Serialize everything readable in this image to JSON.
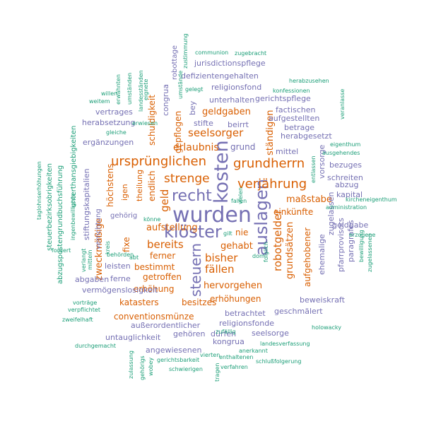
{
  "colors": {
    "purple": "#7570b3",
    "orange": "#d95f02",
    "teal": "#1b9e77"
  },
  "words": [
    {
      "text": "wurden",
      "color": "purple"
    },
    {
      "text": "kosten",
      "color": "purple"
    },
    {
      "text": "klöster",
      "color": "purple"
    },
    {
      "text": "auslagen",
      "color": "purple"
    },
    {
      "text": "recht",
      "color": "purple"
    },
    {
      "text": "steuern",
      "color": "purple"
    },
    {
      "text": "ursprünglichen",
      "color": "orange"
    },
    {
      "text": "verjährung",
      "color": "orange"
    },
    {
      "text": "grundherrn",
      "color": "orange"
    },
    {
      "text": "strenge",
      "color": "orange"
    },
    {
      "text": "geld",
      "color": "orange"
    },
    {
      "text": "bereits",
      "color": "orange"
    },
    {
      "text": "robotgelder",
      "color": "orange"
    },
    {
      "text": "seelsorger",
      "color": "orange"
    },
    {
      "text": "fällen",
      "color": "orange"
    },
    {
      "text": "bisher",
      "color": "orange"
    },
    {
      "text": "gehabt",
      "color": "orange"
    },
    {
      "text": "erlaubnis",
      "color": "orange"
    },
    {
      "text": "grundsätzen",
      "color": "orange"
    },
    {
      "text": "ständigen",
      "color": "orange"
    },
    {
      "text": "geldgaben",
      "color": "orange"
    },
    {
      "text": "schuldigkeit",
      "color": "orange"
    },
    {
      "text": "aufstellung",
      "color": "orange"
    },
    {
      "text": "zweckmäßige",
      "color": "orange"
    },
    {
      "text": "höchstens",
      "color": "orange"
    },
    {
      "text": "maßstabe",
      "color": "orange"
    },
    {
      "text": "einkünfte",
      "color": "orange"
    },
    {
      "text": "hervorgehen",
      "color": "orange"
    },
    {
      "text": "erhöhungen",
      "color": "orange"
    },
    {
      "text": "aufgehobener",
      "color": "orange"
    },
    {
      "text": "erhöhung",
      "color": "orange"
    },
    {
      "text": "katasters",
      "color": "orange"
    },
    {
      "text": "besitzes",
      "color": "orange"
    },
    {
      "text": "conventionsmünze",
      "color": "orange"
    },
    {
      "text": "getroffen",
      "color": "orange"
    },
    {
      "text": "bestimmt",
      "color": "orange"
    },
    {
      "text": "ferner",
      "color": "orange"
    },
    {
      "text": "gepflogen",
      "color": "orange"
    },
    {
      "text": "endlich",
      "color": "orange"
    },
    {
      "text": "fixe",
      "color": "orange"
    },
    {
      "text": "nie",
      "color": "orange"
    },
    {
      "text": "igen",
      "color": "orange"
    },
    {
      "text": "theilung",
      "color": "orange"
    },
    {
      "text": "grund",
      "color": "purple"
    },
    {
      "text": "mittel",
      "color": "purple"
    },
    {
      "text": "bezuges",
      "color": "purple"
    },
    {
      "text": "schreiten",
      "color": "purple"
    },
    {
      "text": "kapital",
      "color": "purple"
    },
    {
      "text": "pfarrprovisors",
      "color": "purple"
    },
    {
      "text": "paragrafes",
      "color": "purple"
    },
    {
      "text": "beweiskraft",
      "color": "purple"
    },
    {
      "text": "geschmälert",
      "color": "purple"
    },
    {
      "text": "betrachtet",
      "color": "purple"
    },
    {
      "text": "religionsfonde",
      "color": "purple"
    },
    {
      "text": "kongrua",
      "color": "purple"
    },
    {
      "text": "seelsorge",
      "color": "purple"
    },
    {
      "text": "gehören",
      "color": "purple"
    },
    {
      "text": "angewiesenen",
      "color": "purple"
    },
    {
      "text": "untauglichkeit",
      "color": "purple"
    },
    {
      "text": "außerordentlicher",
      "color": "purple"
    },
    {
      "text": "dürfen",
      "color": "purple"
    },
    {
      "text": "vermögenslosigkeit",
      "color": "purple"
    },
    {
      "text": "abgaben",
      "color": "purple"
    },
    {
      "text": "ferne",
      "color": "purple"
    },
    {
      "text": "leisten",
      "color": "purple"
    },
    {
      "text": "gehörig",
      "color": "purple"
    },
    {
      "text": "ergänzungen",
      "color": "purple"
    },
    {
      "text": "herabsetzung",
      "color": "purple"
    },
    {
      "text": "vertrages",
      "color": "purple"
    },
    {
      "text": "stifte",
      "color": "purple"
    },
    {
      "text": "beirrt",
      "color": "purple"
    },
    {
      "text": "unterhalten",
      "color": "purple"
    },
    {
      "text": "religionsfond",
      "color": "purple"
    },
    {
      "text": "defizientengehalten",
      "color": "purple"
    },
    {
      "text": "jurisdictionspflege",
      "color": "purple"
    },
    {
      "text": "gerichtspflege",
      "color": "purple"
    },
    {
      "text": "factischen",
      "color": "purple"
    },
    {
      "text": "aufgestellten",
      "color": "purple"
    },
    {
      "text": "betrage",
      "color": "purple"
    },
    {
      "text": "herabgesetzt",
      "color": "purple"
    },
    {
      "text": "bey",
      "color": "purple"
    },
    {
      "text": "congrua",
      "color": "purple"
    },
    {
      "text": "robottage",
      "color": "purple"
    },
    {
      "text": "vorsorge",
      "color": "purple"
    },
    {
      "text": "zugelassen",
      "color": "purple"
    },
    {
      "text": "ehemalige",
      "color": "purple"
    },
    {
      "text": "abzug",
      "color": "purple"
    },
    {
      "text": "geldgabe",
      "color": "purple"
    },
    {
      "text": "stiftungskapitalien",
      "color": "purple"
    },
    {
      "text": "verrichtung",
      "color": "purple"
    },
    {
      "text": "zustimmung",
      "color": "teal"
    },
    {
      "text": "communion",
      "color": "teal"
    },
    {
      "text": "zugebracht",
      "color": "teal"
    },
    {
      "text": "herabzusehen",
      "color": "teal"
    },
    {
      "text": "konfessionen",
      "color": "teal"
    },
    {
      "text": "gelegt",
      "color": "teal"
    },
    {
      "text": "umstände",
      "color": "teal"
    },
    {
      "text": "eignete",
      "color": "teal"
    },
    {
      "text": "erwähnten",
      "color": "teal"
    },
    {
      "text": "umständen",
      "color": "teal"
    },
    {
      "text": "landesständen",
      "color": "teal"
    },
    {
      "text": "willen",
      "color": "teal"
    },
    {
      "text": "weitem",
      "color": "teal"
    },
    {
      "text": "erwiesen",
      "color": "teal"
    },
    {
      "text": "gleiche",
      "color": "teal"
    },
    {
      "text": "veranlasse",
      "color": "teal"
    },
    {
      "text": "eigenthum",
      "color": "teal"
    },
    {
      "text": "ausgehendes",
      "color": "teal"
    },
    {
      "text": "entlassen",
      "color": "teal"
    },
    {
      "text": "kircheneigenthum",
      "color": "teal"
    },
    {
      "text": "administration",
      "color": "teal"
    },
    {
      "text": "erzogene",
      "color": "teal"
    },
    {
      "text": "bewilligung",
      "color": "teal"
    },
    {
      "text": "zugelassenen",
      "color": "teal"
    },
    {
      "text": "holowacky",
      "color": "teal"
    },
    {
      "text": "landesverfassung",
      "color": "teal"
    },
    {
      "text": "schlußfolgerung",
      "color": "teal"
    },
    {
      "text": "anerkannt",
      "color": "teal"
    },
    {
      "text": "enthaltenen",
      "color": "teal"
    },
    {
      "text": "verfahren",
      "color": "teal"
    },
    {
      "text": "vierten",
      "color": "teal"
    },
    {
      "text": "zufällig",
      "color": "teal"
    },
    {
      "text": "dom",
      "color": "teal"
    },
    {
      "text": "folglich",
      "color": "teal"
    },
    {
      "text": "gilt",
      "color": "teal"
    },
    {
      "text": "vielen",
      "color": "teal"
    },
    {
      "text": "fallen",
      "color": "teal"
    },
    {
      "text": "könne",
      "color": "teal"
    },
    {
      "text": "behörden",
      "color": "teal"
    },
    {
      "text": "abt",
      "color": "teal"
    },
    {
      "text": "kreis",
      "color": "teal"
    },
    {
      "text": "mitteln",
      "color": "teal"
    },
    {
      "text": "verlangt",
      "color": "teal"
    },
    {
      "text": "fordert",
      "color": "teal"
    },
    {
      "text": "vorträge",
      "color": "teal"
    },
    {
      "text": "verpflichtet",
      "color": "teal"
    },
    {
      "text": "zweifelhaft",
      "color": "teal"
    },
    {
      "text": "durchgemacht",
      "color": "teal"
    },
    {
      "text": "zulassung",
      "color": "teal"
    },
    {
      "text": "gehörigs",
      "color": "teal"
    },
    {
      "text": "wobey",
      "color": "teal"
    },
    {
      "text": "gerichtsbarkeit",
      "color": "teal"
    },
    {
      "text": "schwierigen",
      "color": "teal"
    },
    {
      "text": "tragen",
      "color": "teal"
    },
    {
      "text": "taglohnserhöhungen",
      "color": "teal"
    },
    {
      "text": "steuerbezirksobrigkeiten",
      "color": "teal"
    },
    {
      "text": "abzugspostengrundbuchsführung",
      "color": "teal"
    },
    {
      "text": "ingenbewilligten",
      "color": "teal"
    },
    {
      "text": "unterthansgiebigkeiten",
      "color": "teal"
    }
  ]
}
